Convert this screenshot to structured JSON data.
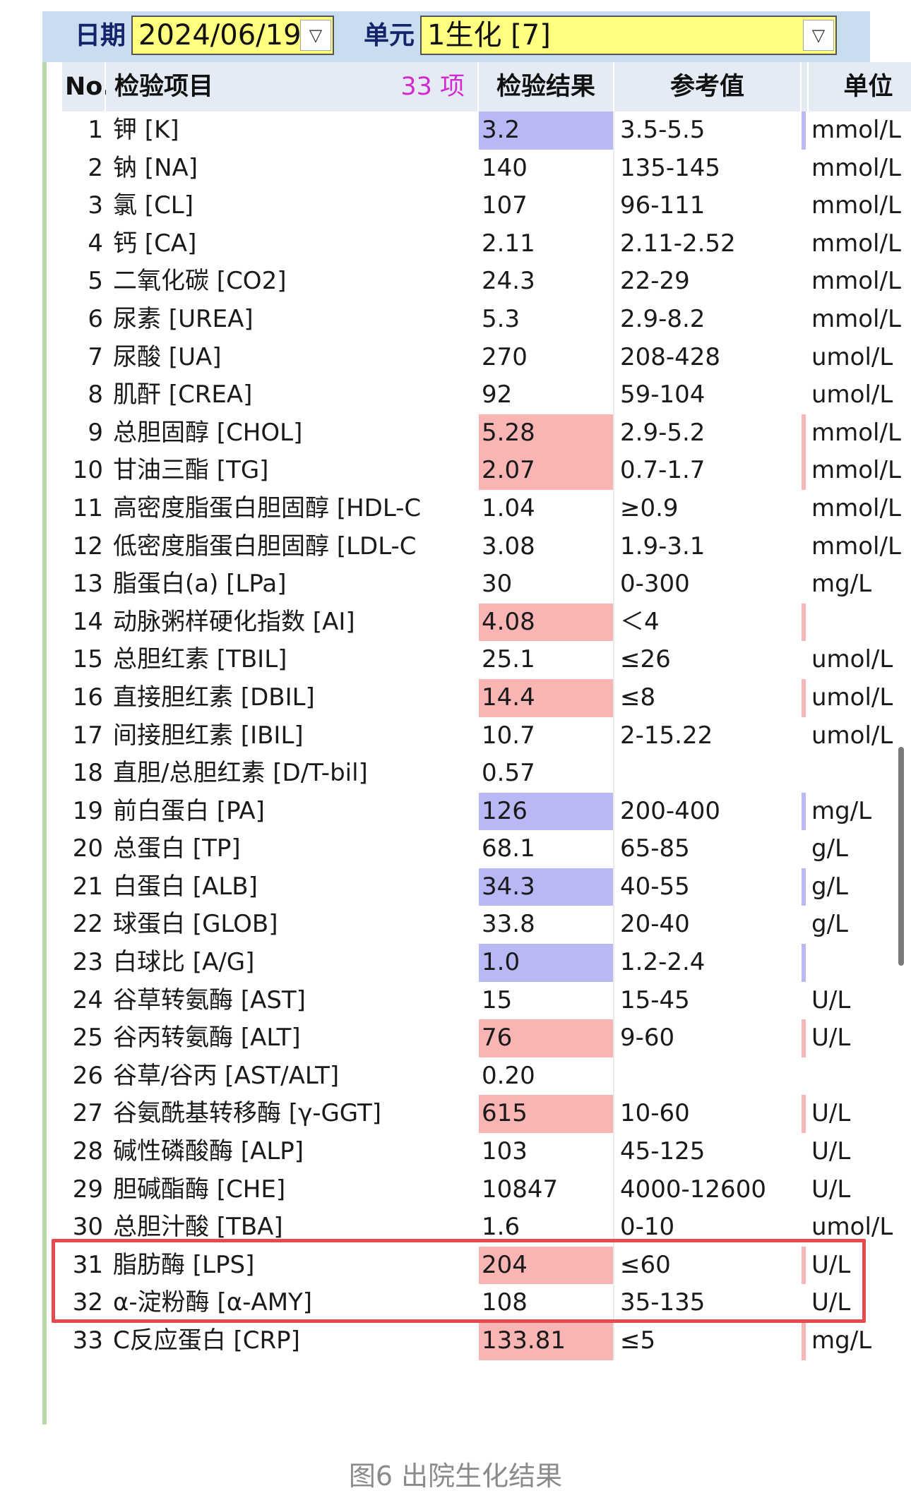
{
  "toolbar": {
    "date_label": "日期",
    "date_value": "2024/06/19",
    "unit_label": "单元",
    "unit_value": "1生化 [7]"
  },
  "table": {
    "headers": {
      "no": "No.",
      "item": "检验项目",
      "count": "33 项",
      "result": "检验结果",
      "reference": "参考值",
      "unit": "单位"
    },
    "rows": [
      {
        "no": "1",
        "item": "钾 [K]",
        "result": "3.2",
        "ref": "3.5-5.5",
        "unit": "mmol/L",
        "flag": "low"
      },
      {
        "no": "2",
        "item": "钠 [NA]",
        "result": "140",
        "ref": "135-145",
        "unit": "mmol/L",
        "flag": ""
      },
      {
        "no": "3",
        "item": "氯 [CL]",
        "result": "107",
        "ref": "96-111",
        "unit": "mmol/L",
        "flag": ""
      },
      {
        "no": "4",
        "item": "钙 [CA]",
        "result": "2.11",
        "ref": "2.11-2.52",
        "unit": "mmol/L",
        "flag": ""
      },
      {
        "no": "5",
        "item": "二氧化碳 [CO2]",
        "result": "24.3",
        "ref": "22-29",
        "unit": "mmol/L",
        "flag": ""
      },
      {
        "no": "6",
        "item": "尿素 [UREA]",
        "result": "5.3",
        "ref": "2.9-8.2",
        "unit": "mmol/L",
        "flag": ""
      },
      {
        "no": "7",
        "item": "尿酸 [UA]",
        "result": "270",
        "ref": "208-428",
        "unit": "umol/L",
        "flag": ""
      },
      {
        "no": "8",
        "item": "肌酐 [CREA]",
        "result": "92",
        "ref": "59-104",
        "unit": "umol/L",
        "flag": ""
      },
      {
        "no": "9",
        "item": "总胆固醇 [CHOL]",
        "result": "5.28",
        "ref": "2.9-5.2",
        "unit": "mmol/L",
        "flag": "high"
      },
      {
        "no": "10",
        "item": "甘油三酯 [TG]",
        "result": "2.07",
        "ref": "0.7-1.7",
        "unit": "mmol/L",
        "flag": "high"
      },
      {
        "no": "11",
        "item": "高密度脂蛋白胆固醇 [HDL-C",
        "result": "1.04",
        "ref": "≥0.9",
        "unit": "mmol/L",
        "flag": ""
      },
      {
        "no": "12",
        "item": "低密度脂蛋白胆固醇 [LDL-C",
        "result": "3.08",
        "ref": "1.9-3.1",
        "unit": "mmol/L",
        "flag": ""
      },
      {
        "no": "13",
        "item": "脂蛋白(a) [LPa]",
        "result": "30",
        "ref": "0-300",
        "unit": "mg/L",
        "flag": ""
      },
      {
        "no": "14",
        "item": "动脉粥样硬化指数 [AI]",
        "result": "4.08",
        "ref": "＜4",
        "unit": "",
        "flag": "high"
      },
      {
        "no": "15",
        "item": "总胆红素 [TBIL]",
        "result": "25.1",
        "ref": "≤26",
        "unit": "umol/L",
        "flag": ""
      },
      {
        "no": "16",
        "item": "直接胆红素 [DBIL]",
        "result": "14.4",
        "ref": "≤8",
        "unit": "umol/L",
        "flag": "high"
      },
      {
        "no": "17",
        "item": "间接胆红素 [IBIL]",
        "result": "10.7",
        "ref": "2-15.22",
        "unit": "umol/L",
        "flag": ""
      },
      {
        "no": "18",
        "item": "直胆/总胆红素 [D/T-bil]",
        "result": "0.57",
        "ref": "",
        "unit": "",
        "flag": ""
      },
      {
        "no": "19",
        "item": "前白蛋白 [PA]",
        "result": "126",
        "ref": "200-400",
        "unit": "mg/L",
        "flag": "low"
      },
      {
        "no": "20",
        "item": "总蛋白 [TP]",
        "result": "68.1",
        "ref": "65-85",
        "unit": "g/L",
        "flag": ""
      },
      {
        "no": "21",
        "item": "白蛋白 [ALB]",
        "result": "34.3",
        "ref": "40-55",
        "unit": "g/L",
        "flag": "low"
      },
      {
        "no": "22",
        "item": "球蛋白 [GLOB]",
        "result": "33.8",
        "ref": "20-40",
        "unit": "g/L",
        "flag": ""
      },
      {
        "no": "23",
        "item": "白球比 [A/G]",
        "result": "1.0",
        "ref": "1.2-2.4",
        "unit": "",
        "flag": "low"
      },
      {
        "no": "24",
        "item": "谷草转氨酶 [AST]",
        "result": "15",
        "ref": "15-45",
        "unit": "U/L",
        "flag": ""
      },
      {
        "no": "25",
        "item": "谷丙转氨酶 [ALT]",
        "result": "76",
        "ref": "9-60",
        "unit": "U/L",
        "flag": "high"
      },
      {
        "no": "26",
        "item": "谷草/谷丙 [AST/ALT]",
        "result": "0.20",
        "ref": "",
        "unit": "",
        "flag": ""
      },
      {
        "no": "27",
        "item": "谷氨酰基转移酶 [γ-GGT]",
        "result": "615",
        "ref": "10-60",
        "unit": "U/L",
        "flag": "high"
      },
      {
        "no": "28",
        "item": "碱性磷酸酶 [ALP]",
        "result": "103",
        "ref": "45-125",
        "unit": "U/L",
        "flag": ""
      },
      {
        "no": "29",
        "item": "胆碱酯酶 [CHE]",
        "result": "10847",
        "ref": "4000-12600",
        "unit": "U/L",
        "flag": ""
      },
      {
        "no": "30",
        "item": "总胆汁酸 [TBA]",
        "result": "1.6",
        "ref": "0-10",
        "unit": "umol/L",
        "flag": ""
      },
      {
        "no": "31",
        "item": "脂肪酶 [LPS]",
        "result": "204",
        "ref": "≤60",
        "unit": "U/L",
        "flag": "high"
      },
      {
        "no": "32",
        "item": "α-淀粉酶 [α-AMY]",
        "result": "108",
        "ref": "35-135",
        "unit": "U/L",
        "flag": ""
      },
      {
        "no": "33",
        "item": "C反应蛋白 [CRP]",
        "result": "133.81",
        "ref": "≤5",
        "unit": "mg/L",
        "flag": "high"
      }
    ]
  },
  "caption": "图6 出院生化结果",
  "colors": {
    "high_bg": "#f9b4b4",
    "low_bg": "#b7b8f4",
    "highlight_border": "#e8494c",
    "combo_bg": "#ffff80"
  }
}
